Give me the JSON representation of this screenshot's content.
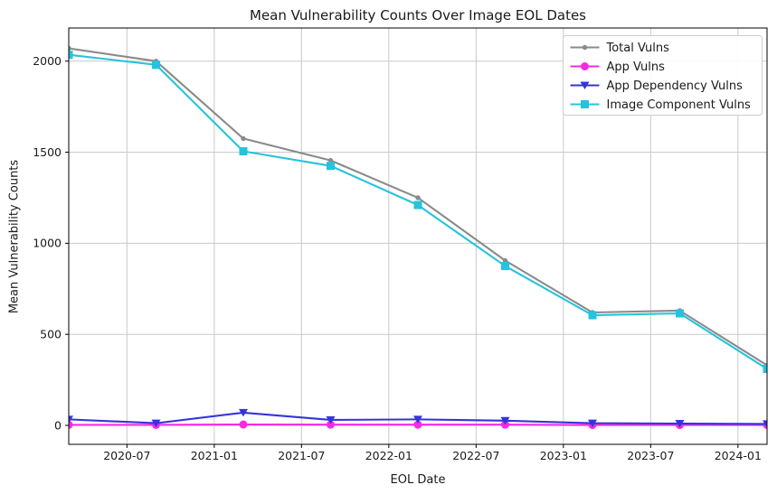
{
  "chart_data": {
    "type": "line",
    "title": "Mean Vulnerability Counts Over Image EOL Dates",
    "xlabel": "EOL Date",
    "ylabel": "Mean Vulnerability Counts",
    "x": [
      "2020-03",
      "2020-09",
      "2021-03",
      "2021-09",
      "2022-03",
      "2022-09",
      "2023-03",
      "2023-09",
      "2024-03"
    ],
    "series": [
      {
        "name": "Total Vulns",
        "color": "#8a8a8a",
        "marker": "dot",
        "values": [
          2070,
          2000,
          1575,
          1455,
          1250,
          905,
          620,
          630,
          330
        ]
      },
      {
        "name": "App Vulns",
        "color": "#f52ae2",
        "marker": "circle",
        "values": [
          3,
          3,
          5,
          4,
          4,
          4,
          2,
          2,
          2
        ]
      },
      {
        "name": "App Dependency Vulns",
        "color": "#3434d8",
        "marker": "triangle-down",
        "values": [
          33,
          12,
          70,
          30,
          33,
          26,
          12,
          10,
          8
        ]
      },
      {
        "name": "Image Component Vulns",
        "color": "#25c3dd",
        "marker": "square",
        "values": [
          2035,
          1980,
          1505,
          1425,
          1210,
          875,
          605,
          615,
          310
        ]
      }
    ],
    "xticks": [
      "2020-07",
      "2021-01",
      "2021-07",
      "2022-01",
      "2022-07",
      "2023-01",
      "2023-07",
      "2024-01"
    ],
    "yticks": [
      0,
      500,
      1000,
      1500,
      2000
    ],
    "ylim": [
      -104,
      2182
    ],
    "grid": true,
    "legend_position": "upper right",
    "grid_color": "#c9c9c9",
    "axis_color": "#000000",
    "tick_text_color": "#1a1a1a",
    "background": "#ffffff"
  }
}
